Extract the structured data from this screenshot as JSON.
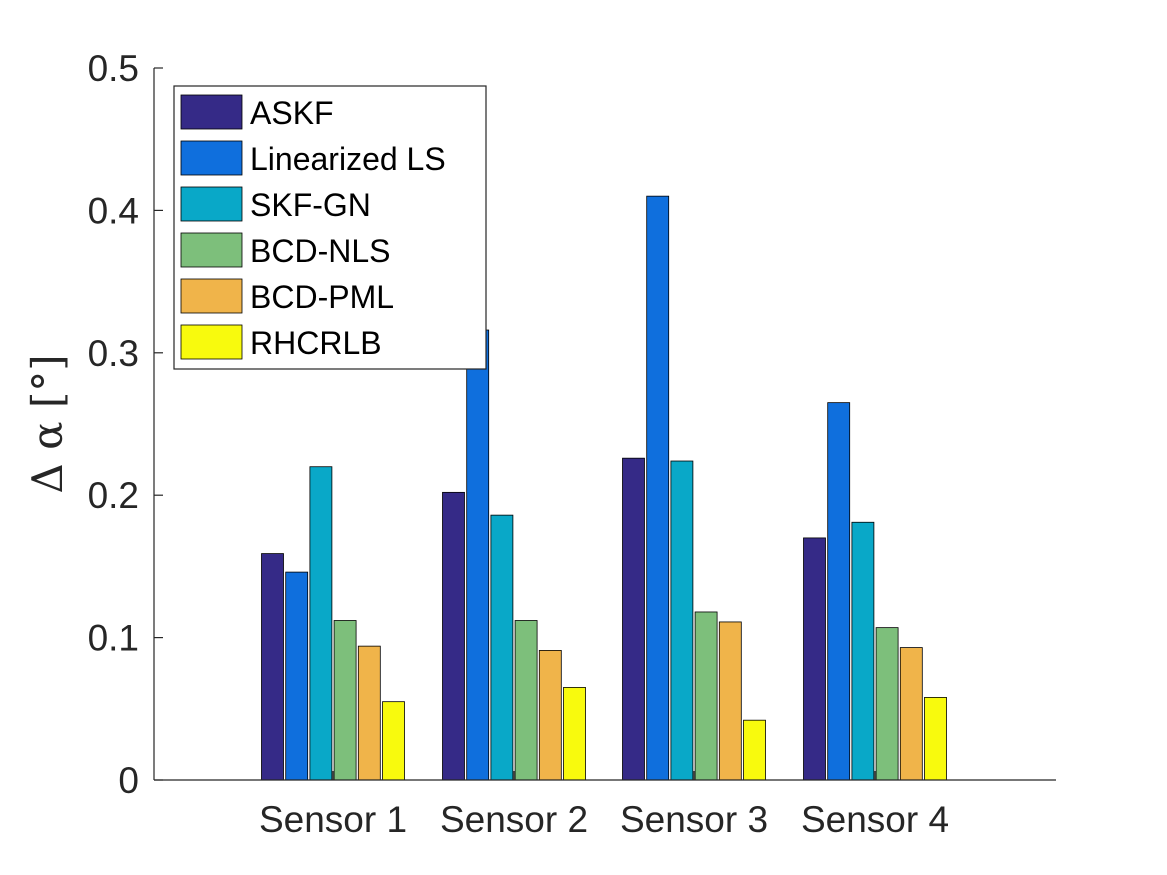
{
  "chart_data": {
    "type": "bar",
    "title": "",
    "xlabel": "",
    "ylabel": "Δ α [°]",
    "ylim": [
      0,
      0.5
    ],
    "yticks": [
      0,
      0.1,
      0.2,
      0.3,
      0.4,
      0.5
    ],
    "ytick_labels": [
      "0",
      "0.1",
      "0.2",
      "0.3",
      "0.4",
      "0.5"
    ],
    "grid": false,
    "legend_position": "top-left",
    "categories": [
      "Sensor 1",
      "Sensor 2",
      "Sensor 3",
      "Sensor 4"
    ],
    "series": [
      {
        "name": "ASKF",
        "color": "#352a87",
        "values": [
          0.159,
          0.202,
          0.226,
          0.17
        ]
      },
      {
        "name": "Linearized LS",
        "color": "#0f6fdd",
        "values": [
          0.146,
          0.316,
          0.41,
          0.265
        ]
      },
      {
        "name": "SKF-GN",
        "color": "#09a8c8",
        "values": [
          0.22,
          0.186,
          0.224,
          0.181
        ]
      },
      {
        "name": "BCD-NLS",
        "color": "#7dbf7b",
        "values": [
          0.112,
          0.112,
          0.118,
          0.107
        ]
      },
      {
        "name": "BCD-PML",
        "color": "#f0b44a",
        "values": [
          0.094,
          0.091,
          0.111,
          0.093
        ]
      },
      {
        "name": "RHCRLB",
        "color": "#f8fa0d",
        "values": [
          0.055,
          0.065,
          0.042,
          0.058
        ]
      }
    ]
  }
}
